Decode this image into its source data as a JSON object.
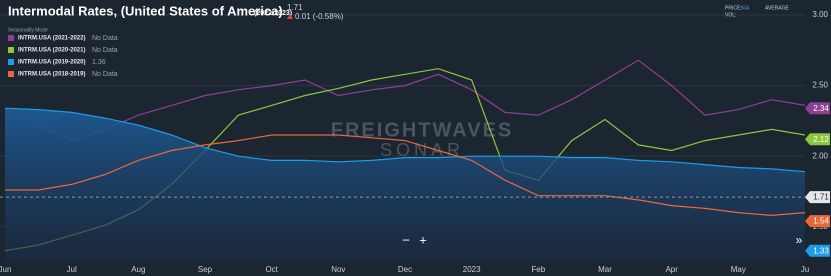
{
  "chart_data": {
    "type": "line",
    "title": "Intermodal Rates, (United States of America)",
    "title_range": "(2022-2023)",
    "current_value": "1.71",
    "change": "0.01 (-0.58%)",
    "legend_title": "Seasonality Mode",
    "price_label": "PRICE:",
    "price_value": "N/A",
    "vol_label": "VOL:",
    "average_label": "AVERAGE",
    "watermark": [
      "FREIGHTWAVES",
      "SONAR"
    ],
    "controls": [
      "−",
      "+",
      "»"
    ],
    "categories": [
      "Jun",
      null,
      "Jul",
      null,
      "Aug",
      null,
      "Sep",
      null,
      "Oct",
      null,
      "Nov",
      null,
      "Dec",
      null,
      "2023",
      null,
      "Feb",
      null,
      "Mar",
      null,
      "Apr",
      null,
      "May",
      null,
      "Ju"
    ],
    "ylim": [
      1.25,
      3.05
    ],
    "yticks": [
      {
        "value": 1.5,
        "label": "1.50"
      },
      {
        "value": 2,
        "label": "2.00"
      },
      {
        "value": 2.5,
        "label": "2.50"
      },
      {
        "value": 3,
        "label": "3.00"
      }
    ],
    "grid": true,
    "series": [
      {
        "name": "INTRM.USA (2021-2022)",
        "legend_value": "No Data",
        "color": "#8e3f95",
        "area": false,
        "values": [
          null,
          2.22,
          2.11,
          2.19,
          2.29,
          2.36,
          2.43,
          2.47,
          2.5,
          2.54,
          2.43,
          2.47,
          2.5,
          2.58,
          2.47,
          2.31,
          2.29,
          2.4,
          2.54,
          2.68,
          2.5,
          2.29,
          2.33,
          2.4,
          2.36
        ]
      },
      {
        "name": "INTRM.USA (2020-2021)",
        "legend_value": "No Data",
        "color": "#8dc63f",
        "area": false,
        "values": [
          1.33,
          1.37,
          1.44,
          1.51,
          1.62,
          1.8,
          2.04,
          2.29,
          2.36,
          2.43,
          2.48,
          2.54,
          2.58,
          2.62,
          2.54,
          1.9,
          1.83,
          2.11,
          2.26,
          2.08,
          2.04,
          2.11,
          2.15,
          2.19,
          2.15
        ]
      },
      {
        "name": "INTRM.USA (2019-2020)",
        "legend_value": "1.36",
        "color": "#1e9be9",
        "area": true,
        "values": [
          2.34,
          2.33,
          2.31,
          2.27,
          2.22,
          2.15,
          2.06,
          2.0,
          1.97,
          1.97,
          1.96,
          1.97,
          1.99,
          1.99,
          2.0,
          2.0,
          2.0,
          1.99,
          1.99,
          1.97,
          1.96,
          1.94,
          1.92,
          1.91,
          1.89
        ]
      },
      {
        "name": "INTRM.USA (2018-2019)",
        "legend_value": "No Data",
        "color": "#e8683a",
        "area": false,
        "values": [
          1.76,
          1.76,
          1.8,
          1.87,
          1.97,
          2.04,
          2.08,
          2.11,
          2.15,
          2.15,
          2.15,
          2.13,
          2.11,
          2.04,
          1.97,
          1.83,
          1.72,
          1.72,
          1.72,
          1.69,
          1.65,
          1.63,
          1.6,
          1.58,
          1.6
        ]
      }
    ],
    "value_tags": [
      {
        "value": 2.34,
        "color": "#8e3f95"
      },
      {
        "value": 2.12,
        "color": "#8dc63f"
      },
      {
        "value": 1.71,
        "color": "#e6e6e6"
      },
      {
        "value": 1.54,
        "color": "#e8683a"
      },
      {
        "value": 1.33,
        "color": "#1e9be9"
      }
    ],
    "reference_line": 1.71
  }
}
